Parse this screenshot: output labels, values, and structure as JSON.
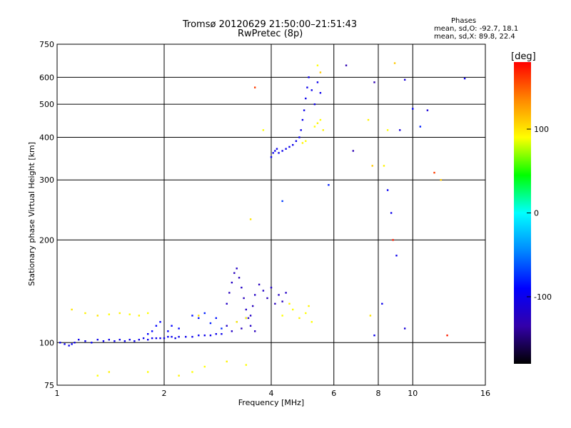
{
  "chart_data": {
    "type": "scatter",
    "title": "Tromsø 20120629 21:50:00–21:51:43",
    "subtitle": "RwPretec (8p)",
    "xlabel": "Frequency [MHz]",
    "ylabel": "Stationary phase Virtual Height [km]",
    "x_scale": "log",
    "y_scale": "log",
    "xlim": [
      1,
      16
    ],
    "ylim": [
      75,
      750
    ],
    "x_ticks": [
      1,
      2,
      4,
      6,
      8,
      10,
      16
    ],
    "y_ticks": [
      75,
      100,
      200,
      300,
      400,
      500,
      600,
      750
    ],
    "grid": true,
    "stats": {
      "heading": "Phases",
      "line_o": "mean, sd,O: -92.7, 18.1",
      "line_x": "mean, sd,X:  89.8, 22.4"
    },
    "colorbar": {
      "label": "[deg]",
      "min": -180,
      "max": 180,
      "ticks": [
        100,
        0,
        -100
      ],
      "colors": [
        "#ff0000",
        "#ff8800",
        "#ffff00",
        "#00ff00",
        "#00ffff",
        "#0088ff",
        "#0000ff",
        "#3300aa",
        "#000000"
      ]
    },
    "series": [
      {
        "points": [
          [
            1.02,
            100,
            -100
          ],
          [
            1.05,
            99,
            -100
          ],
          [
            1.08,
            98,
            -100
          ],
          [
            1.1,
            99,
            -95
          ],
          [
            1.12,
            100,
            -100
          ],
          [
            1.15,
            102,
            -100
          ],
          [
            1.2,
            101,
            -100
          ],
          [
            1.25,
            100,
            -95
          ],
          [
            1.3,
            102,
            -100
          ],
          [
            1.35,
            101,
            -100
          ],
          [
            1.4,
            102,
            -100
          ],
          [
            1.45,
            101,
            -100
          ],
          [
            1.5,
            102,
            -100
          ],
          [
            1.55,
            101,
            -100
          ],
          [
            1.6,
            102,
            -100
          ],
          [
            1.65,
            101,
            -100
          ],
          [
            1.7,
            102,
            -100
          ],
          [
            1.75,
            103,
            -100
          ],
          [
            1.8,
            102,
            -100
          ],
          [
            1.85,
            103,
            -100
          ],
          [
            1.9,
            103,
            -100
          ],
          [
            1.95,
            103,
            -100
          ],
          [
            2,
            103,
            -100
          ],
          [
            2.05,
            104,
            -95
          ],
          [
            2.1,
            104,
            -100
          ],
          [
            2.15,
            103,
            -100
          ],
          [
            2.2,
            104,
            -100
          ],
          [
            2.3,
            104,
            -100
          ],
          [
            2.4,
            104,
            -100
          ],
          [
            2.5,
            105,
            -95
          ],
          [
            2.6,
            105,
            -100
          ],
          [
            2.7,
            105,
            -100
          ],
          [
            2.8,
            106,
            -100
          ],
          [
            2.9,
            106,
            -100
          ],
          [
            1.8,
            106,
            -90
          ],
          [
            1.85,
            108,
            -90
          ],
          [
            1.9,
            112,
            -90
          ],
          [
            1.95,
            115,
            -90
          ],
          [
            2.05,
            108,
            -90
          ],
          [
            2.1,
            112,
            -90
          ],
          [
            2.2,
            110,
            -90
          ],
          [
            2.4,
            120,
            -85
          ],
          [
            2.5,
            118,
            -85
          ],
          [
            2.6,
            122,
            -80
          ],
          [
            2.7,
            114,
            -80
          ],
          [
            2.8,
            118,
            -85
          ],
          [
            2.9,
            110,
            -75
          ],
          [
            3,
            112,
            -120
          ],
          [
            3.1,
            108,
            -120
          ],
          [
            3.2,
            115,
            -120
          ],
          [
            3.3,
            110,
            -125
          ],
          [
            3.4,
            118,
            -120
          ],
          [
            3.5,
            112,
            -120
          ],
          [
            3.6,
            108,
            -125
          ],
          [
            3,
            130,
            -120
          ],
          [
            3.05,
            140,
            -125
          ],
          [
            3.1,
            150,
            -120
          ],
          [
            3.15,
            160,
            -125
          ],
          [
            3.2,
            165,
            -120
          ],
          [
            3.25,
            155,
            -125
          ],
          [
            3.3,
            145,
            -120
          ],
          [
            3.35,
            135,
            -125
          ],
          [
            3.4,
            125,
            -120
          ],
          [
            3.45,
            118,
            -125
          ],
          [
            3.5,
            120,
            -120
          ],
          [
            3.55,
            128,
            -125
          ],
          [
            3.6,
            138,
            -120
          ],
          [
            3.7,
            148,
            -125
          ],
          [
            3.8,
            142,
            -120
          ],
          [
            3.9,
            135,
            -125
          ],
          [
            4,
            145,
            -120
          ],
          [
            4.1,
            130,
            -125
          ],
          [
            4.2,
            138,
            -120
          ],
          [
            4.3,
            132,
            -125
          ],
          [
            4.4,
            140,
            -120
          ],
          [
            4,
            350,
            -100
          ],
          [
            4.05,
            360,
            -100
          ],
          [
            4.1,
            365,
            -100
          ],
          [
            4.15,
            370,
            -100
          ],
          [
            4.2,
            360,
            -100
          ],
          [
            4.3,
            365,
            -100
          ],
          [
            4.4,
            370,
            -100
          ],
          [
            4.5,
            375,
            -100
          ],
          [
            4.6,
            380,
            -100
          ],
          [
            4.7,
            390,
            -100
          ],
          [
            4.8,
            400,
            -95
          ],
          [
            4.85,
            420,
            -100
          ],
          [
            4.9,
            450,
            -100
          ],
          [
            4.95,
            480,
            -100
          ],
          [
            5,
            520,
            -100
          ],
          [
            5.05,
            560,
            -100
          ],
          [
            5.1,
            600,
            -100
          ],
          [
            5.2,
            550,
            -100
          ],
          [
            5.3,
            500,
            -100
          ],
          [
            5.4,
            580,
            -100
          ],
          [
            5.5,
            540,
            -100
          ],
          [
            4.3,
            120,
            90
          ],
          [
            4.5,
            130,
            95
          ],
          [
            4.6,
            125,
            90
          ],
          [
            4.8,
            118,
            95
          ],
          [
            5,
            122,
            90
          ],
          [
            5.1,
            128,
            95
          ],
          [
            5.2,
            115,
            90
          ],
          [
            5.3,
            430,
            90
          ],
          [
            5.4,
            440,
            95
          ],
          [
            5.5,
            450,
            90
          ],
          [
            5.6,
            420,
            95
          ],
          [
            5,
            390,
            90
          ],
          [
            4.9,
            385,
            95
          ],
          [
            1.1,
            125,
            100
          ],
          [
            1.2,
            122,
            95
          ],
          [
            1.3,
            120,
            100
          ],
          [
            1.4,
            121,
            90
          ],
          [
            1.5,
            122,
            95
          ],
          [
            1.6,
            121,
            90
          ],
          [
            1.7,
            120,
            95
          ],
          [
            1.8,
            122,
            90
          ],
          [
            2.5,
            120,
            100
          ],
          [
            3.2,
            115,
            95
          ],
          [
            3.4,
            118,
            90
          ],
          [
            1.3,
            80,
            90
          ],
          [
            1.4,
            82,
            95
          ],
          [
            1.8,
            82,
            90
          ],
          [
            2.2,
            80,
            95
          ],
          [
            2.6,
            85,
            90
          ],
          [
            3,
            88,
            95
          ],
          [
            3.4,
            86,
            90
          ],
          [
            2.4,
            82,
            90
          ],
          [
            3.6,
            560,
            160
          ],
          [
            3.8,
            420,
            90
          ],
          [
            5.5,
            620,
            110
          ],
          [
            5.4,
            650,
            90
          ],
          [
            6.5,
            650,
            -130
          ],
          [
            7.5,
            450,
            95
          ],
          [
            7.8,
            580,
            -130
          ],
          [
            8.3,
            330,
            95
          ],
          [
            8.5,
            420,
            90
          ],
          [
            8.5,
            280,
            -95
          ],
          [
            8.7,
            240,
            -100
          ],
          [
            8.8,
            200,
            170
          ],
          [
            8.9,
            660,
            110
          ],
          [
            9,
            180,
            -100
          ],
          [
            9.2,
            420,
            -110
          ],
          [
            9.5,
            590,
            -110
          ],
          [
            9.5,
            110,
            -110
          ],
          [
            10,
            485,
            -90
          ],
          [
            10.5,
            430,
            -80
          ],
          [
            11,
            480,
            -110
          ],
          [
            11.5,
            315,
            160
          ],
          [
            12,
            300,
            110
          ],
          [
            14,
            595,
            -100
          ],
          [
            8.2,
            130,
            -100
          ],
          [
            7.6,
            120,
            100
          ],
          [
            7.8,
            105,
            -100
          ],
          [
            12.5,
            105,
            170
          ],
          [
            3.5,
            230,
            100
          ],
          [
            4.3,
            260,
            -70
          ],
          [
            5.8,
            290,
            -80
          ],
          [
            6.8,
            365,
            -130
          ],
          [
            7.7,
            330,
            110
          ]
        ]
      }
    ]
  }
}
